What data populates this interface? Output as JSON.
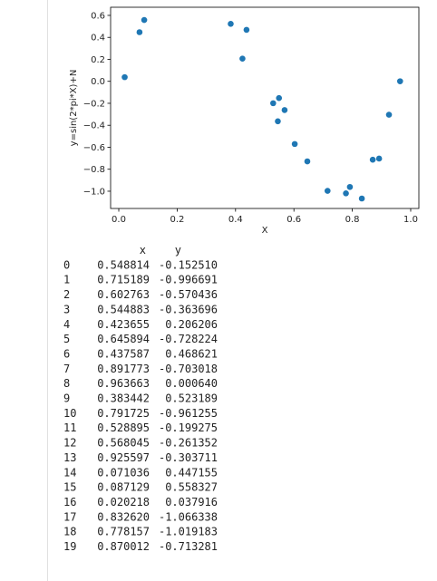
{
  "chart_data": {
    "type": "scatter",
    "xlabel": "X",
    "ylabel": "y=sin(2*pi*X)+N",
    "color": "#1f77b4",
    "x": [
      0.548814,
      0.715189,
      0.602763,
      0.544883,
      0.423655,
      0.645894,
      0.437587,
      0.891773,
      0.963663,
      0.383442,
      0.791725,
      0.528895,
      0.568045,
      0.925597,
      0.071036,
      0.087129,
      0.020218,
      0.83262,
      0.778157,
      0.870012
    ],
    "y": [
      -0.15251,
      -0.996691,
      -0.570436,
      -0.363696,
      0.206206,
      -0.728224,
      0.468621,
      -0.703018,
      0.00064,
      0.523189,
      -0.961255,
      -0.199275,
      -0.261352,
      -0.303711,
      0.447155,
      0.558327,
      0.037916,
      -1.066338,
      -1.019183,
      -0.713281
    ],
    "xlim": [
      -0.028,
      1.028
    ],
    "ylim": [
      -1.157,
      0.674
    ],
    "xticks": [
      {
        "value": 0,
        "label": "0.0"
      },
      {
        "value": 0.2,
        "label": "0.2"
      },
      {
        "value": 0.4,
        "label": "0.4"
      },
      {
        "value": 0.6,
        "label": "0.6"
      },
      {
        "value": 0.8,
        "label": "0.8"
      },
      {
        "value": 1,
        "label": "1.0"
      }
    ],
    "yticks": [
      {
        "value": -1,
        "label": "−1.0"
      },
      {
        "value": -0.8,
        "label": "−0.8"
      },
      {
        "value": -0.6,
        "label": "−0.6"
      },
      {
        "value": -0.4,
        "label": "−0.4"
      },
      {
        "value": -0.2,
        "label": "−0.2"
      },
      {
        "value": 0,
        "label": "0.0"
      },
      {
        "value": 0.2,
        "label": "0.2"
      },
      {
        "value": 0.4,
        "label": "0.4"
      },
      {
        "value": 0.6,
        "label": "0.6"
      }
    ]
  },
  "table": {
    "columns": [
      "x",
      "y"
    ],
    "rows": [
      [
        "0",
        "0.548814",
        "-0.152510"
      ],
      [
        "1",
        "0.715189",
        "-0.996691"
      ],
      [
        "2",
        "0.602763",
        "-0.570436"
      ],
      [
        "3",
        "0.544883",
        "-0.363696"
      ],
      [
        "4",
        "0.423655",
        " 0.206206"
      ],
      [
        "5",
        "0.645894",
        "-0.728224"
      ],
      [
        "6",
        "0.437587",
        " 0.468621"
      ],
      [
        "7",
        "0.891773",
        "-0.703018"
      ],
      [
        "8",
        "0.963663",
        " 0.000640"
      ],
      [
        "9",
        "0.383442",
        " 0.523189"
      ],
      [
        "10",
        "0.791725",
        "-0.961255"
      ],
      [
        "11",
        "0.528895",
        "-0.199275"
      ],
      [
        "12",
        "0.568045",
        "-0.261352"
      ],
      [
        "13",
        "0.925597",
        "-0.303711"
      ],
      [
        "14",
        "0.071036",
        " 0.447155"
      ],
      [
        "15",
        "0.087129",
        " 0.558327"
      ],
      [
        "16",
        "0.020218",
        " 0.037916"
      ],
      [
        "17",
        "0.832620",
        "-1.066338"
      ],
      [
        "18",
        "0.778157",
        "-1.019183"
      ],
      [
        "19",
        "0.870012",
        "-0.713281"
      ]
    ]
  }
}
